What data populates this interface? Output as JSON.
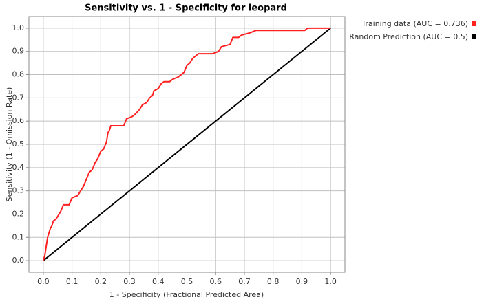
{
  "chart_data": {
    "type": "line",
    "title": "Sensitivity vs. 1 - Specificity for leopard",
    "x_label": "1 - Specificity  (Fractional Predicted Area)",
    "y_label": "Sensitivity  (1 - Omission Rate)",
    "xlim": [
      -0.05,
      1.05
    ],
    "ylim": [
      -0.05,
      1.05
    ],
    "xticks": [
      {
        "value": 0,
        "label": "0.0"
      },
      0.1,
      0.2,
      0.3,
      0.4,
      0.5,
      0.6,
      0.7,
      0.8,
      0.9,
      {
        "value": 1,
        "label": "1.0"
      }
    ],
    "yticks": [
      {
        "value": 0,
        "label": "0.0"
      },
      0.1,
      0.2,
      0.3,
      0.4,
      0.5,
      0.6,
      0.7,
      0.8,
      0.9,
      {
        "value": 1,
        "label": "1.0"
      }
    ],
    "grid": true,
    "legend": "right",
    "series": [
      {
        "name": "Training data (AUC = 0.736)",
        "color": "#ff2020",
        "x": [
          0,
          0.005,
          0.01,
          0.015,
          0.02,
          0.025,
          0.03,
          0.035,
          0.045,
          0.06,
          0.07,
          0.09,
          0.1,
          0.12,
          0.13,
          0.14,
          0.15,
          0.16,
          0.17,
          0.18,
          0.19,
          0.2,
          0.21,
          0.22,
          0.225,
          0.23,
          0.235,
          0.28,
          0.29,
          0.31,
          0.32,
          0.335,
          0.345,
          0.36,
          0.37,
          0.38,
          0.385,
          0.4,
          0.41,
          0.42,
          0.44,
          0.45,
          0.47,
          0.48,
          0.49,
          0.5,
          0.51,
          0.52,
          0.53,
          0.54,
          0.59,
          0.61,
          0.62,
          0.65,
          0.66,
          0.68,
          0.69,
          0.72,
          0.74,
          0.91,
          0.92,
          1.0
        ],
        "values": [
          0,
          0.02,
          0.06,
          0.1,
          0.12,
          0.14,
          0.15,
          0.17,
          0.18,
          0.21,
          0.24,
          0.24,
          0.27,
          0.28,
          0.3,
          0.32,
          0.35,
          0.38,
          0.39,
          0.42,
          0.44,
          0.47,
          0.48,
          0.51,
          0.55,
          0.56,
          0.58,
          0.58,
          0.61,
          0.62,
          0.63,
          0.65,
          0.67,
          0.68,
          0.7,
          0.71,
          0.73,
          0.74,
          0.76,
          0.77,
          0.77,
          0.78,
          0.79,
          0.8,
          0.81,
          0.84,
          0.85,
          0.87,
          0.88,
          0.89,
          0.89,
          0.9,
          0.92,
          0.93,
          0.96,
          0.96,
          0.97,
          0.98,
          0.99,
          0.99,
          1.0,
          1.0
        ]
      },
      {
        "name": "Random Prediction (AUC = 0.5)",
        "color": "#000000",
        "x": [
          0,
          1
        ],
        "values": [
          0,
          1
        ]
      }
    ]
  }
}
